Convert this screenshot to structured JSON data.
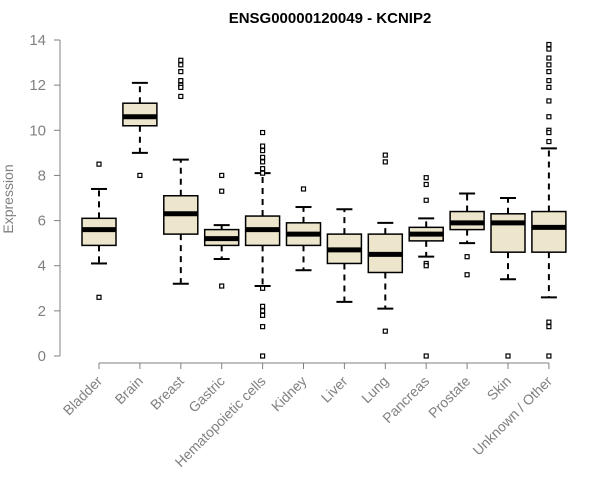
{
  "chart_data": {
    "type": "boxplot",
    "title": "ENSG00000120049 - KCNIP2",
    "xlabel": "",
    "ylabel": "Expression",
    "ylim": [
      0,
      14
    ],
    "yticks": [
      0,
      2,
      4,
      6,
      8,
      10,
      12,
      14
    ],
    "categories": [
      "Bladder",
      "Brain",
      "Breast",
      "Gastric",
      "Hematopoietic cells",
      "Kidney",
      "Liver",
      "Lung",
      "Pancreas",
      "Prostate",
      "Skin",
      "Unknown / Other"
    ],
    "boxes": [
      {
        "name": "Bladder",
        "whisker_low": 4.1,
        "q1": 4.9,
        "median": 5.6,
        "q3": 6.1,
        "whisker_high": 7.4,
        "outliers": [
          8.5,
          2.6
        ]
      },
      {
        "name": "Brain",
        "whisker_low": 9.0,
        "q1": 10.2,
        "median": 10.6,
        "q3": 11.2,
        "whisker_high": 12.1,
        "outliers": [
          8.0
        ]
      },
      {
        "name": "Breast",
        "whisker_low": 3.2,
        "q1": 5.4,
        "median": 6.3,
        "q3": 7.1,
        "whisker_high": 8.7,
        "outliers": [
          13.1,
          12.9,
          12.6,
          12.2,
          12.0,
          11.9,
          11.5
        ]
      },
      {
        "name": "Gastric",
        "whisker_low": 4.3,
        "q1": 4.9,
        "median": 5.2,
        "q3": 5.6,
        "whisker_high": 5.8,
        "outliers": [
          8.0,
          7.3,
          3.1
        ]
      },
      {
        "name": "Hematopoietic cells",
        "whisker_low": 3.1,
        "q1": 4.9,
        "median": 5.6,
        "q3": 6.2,
        "whisker_high": 8.1,
        "outliers": [
          9.9,
          9.3,
          9.1,
          8.8,
          8.6,
          8.3,
          8.1,
          3.0,
          2.2,
          2.0,
          1.8,
          1.3,
          0.0
        ]
      },
      {
        "name": "Kidney",
        "whisker_low": 3.8,
        "q1": 4.9,
        "median": 5.4,
        "q3": 5.9,
        "whisker_high": 6.6,
        "outliers": [
          7.4
        ]
      },
      {
        "name": "Liver",
        "whisker_low": 2.4,
        "q1": 4.1,
        "median": 4.7,
        "q3": 5.4,
        "whisker_high": 6.5,
        "outliers": []
      },
      {
        "name": "Lung",
        "whisker_low": 2.1,
        "q1": 3.7,
        "median": 4.5,
        "q3": 5.4,
        "whisker_high": 5.9,
        "outliers": [
          8.9,
          8.6,
          1.1
        ]
      },
      {
        "name": "Pancreas",
        "whisker_low": 4.4,
        "q1": 5.1,
        "median": 5.4,
        "q3": 5.7,
        "whisker_high": 6.1,
        "outliers": [
          7.9,
          7.6,
          6.9,
          4.1,
          4.0,
          0.0
        ]
      },
      {
        "name": "Prostate",
        "whisker_low": 5.0,
        "q1": 5.6,
        "median": 5.9,
        "q3": 6.4,
        "whisker_high": 7.2,
        "outliers": [
          4.4,
          3.6
        ]
      },
      {
        "name": "Skin",
        "whisker_low": 3.4,
        "q1": 4.6,
        "median": 5.9,
        "q3": 6.3,
        "whisker_high": 7.0,
        "outliers": [
          0.0
        ]
      },
      {
        "name": "Unknown / Other",
        "whisker_low": 2.6,
        "q1": 4.6,
        "median": 5.7,
        "q3": 6.4,
        "whisker_high": 9.2,
        "outliers": [
          13.8,
          13.6,
          13.2,
          12.9,
          12.6,
          12.2,
          11.9,
          11.3,
          10.6,
          10.0,
          9.9,
          9.5,
          1.5,
          1.3,
          0.0
        ]
      }
    ],
    "colors": {
      "box_fill": "#ede6cc",
      "box_stroke": "#000000",
      "axis": "#808080",
      "text": "#808080",
      "title": "#000000"
    }
  }
}
